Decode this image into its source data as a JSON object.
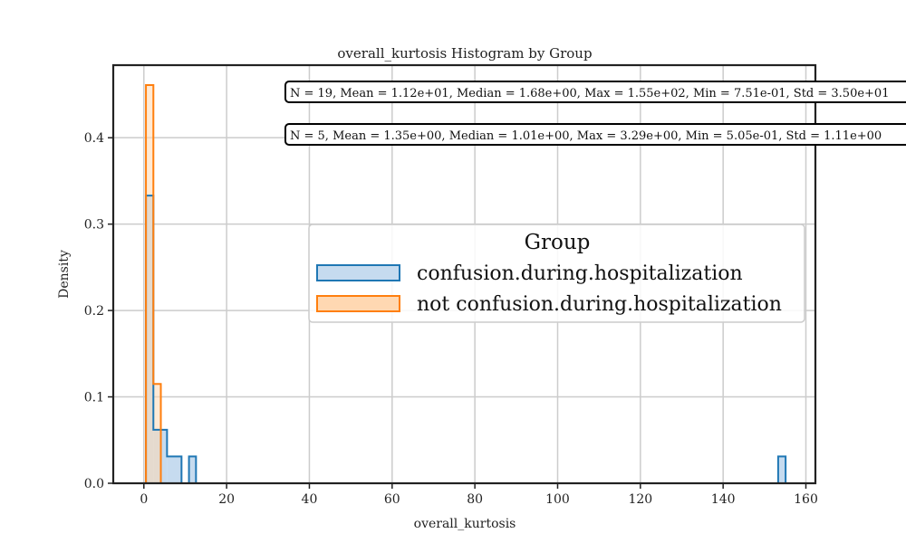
{
  "chart_data": {
    "type": "histogram",
    "title": "overall_kurtosis Histogram by Group",
    "xlabel": "overall_kurtosis",
    "ylabel": "Density",
    "xlim": [
      -7.4,
      162.3
    ],
    "ylim": [
      0,
      0.484
    ],
    "xticks": [
      0,
      20,
      40,
      60,
      80,
      100,
      120,
      140,
      160
    ],
    "yticks": [
      0.0,
      0.1,
      0.2,
      0.3,
      0.4
    ],
    "xtick_labels": [
      "0",
      "20",
      "40",
      "60",
      "80",
      "100",
      "120",
      "140",
      "160"
    ],
    "ytick_labels": [
      "0.0",
      "0.1",
      "0.2",
      "0.3",
      "0.4"
    ],
    "grid": true,
    "legend": {
      "title": "Group",
      "position": "center-right"
    },
    "series": [
      {
        "name": "confusion.during.hospitalization",
        "color": "#1f77b4",
        "fill": "#c6dbef",
        "bins": [
          {
            "x0": 0.5,
            "x1": 2.3,
            "density": 0.333
          },
          {
            "x0": 2.3,
            "x1": 5.6,
            "density": 0.062
          },
          {
            "x0": 5.6,
            "x1": 9.1,
            "density": 0.031
          },
          {
            "x0": 9.1,
            "x1": 10.9,
            "density": 0.0
          },
          {
            "x0": 10.9,
            "x1": 12.6,
            "density": 0.031
          },
          {
            "x0": 153.3,
            "x1": 155.1,
            "density": 0.031
          }
        ]
      },
      {
        "name": "not confusion.during.hospitalization",
        "color": "#ff7f0e",
        "fill": "#ffd8b2",
        "bins": [
          {
            "x0": 0.5,
            "x1": 2.3,
            "density": 0.461
          },
          {
            "x0": 2.3,
            "x1": 4.1,
            "density": 0.115
          }
        ]
      }
    ],
    "annotations": [
      "N = 19, Mean = 1.12e+01, Median = 1.68e+00, Max = 1.55e+02, Min = 7.51e-01, Std = 3.50e+01",
      "N = 5, Mean = 1.35e+00, Median = 1.01e+00, Max = 3.29e+00, Min = 5.05e-01, Std = 1.11e+00"
    ]
  }
}
